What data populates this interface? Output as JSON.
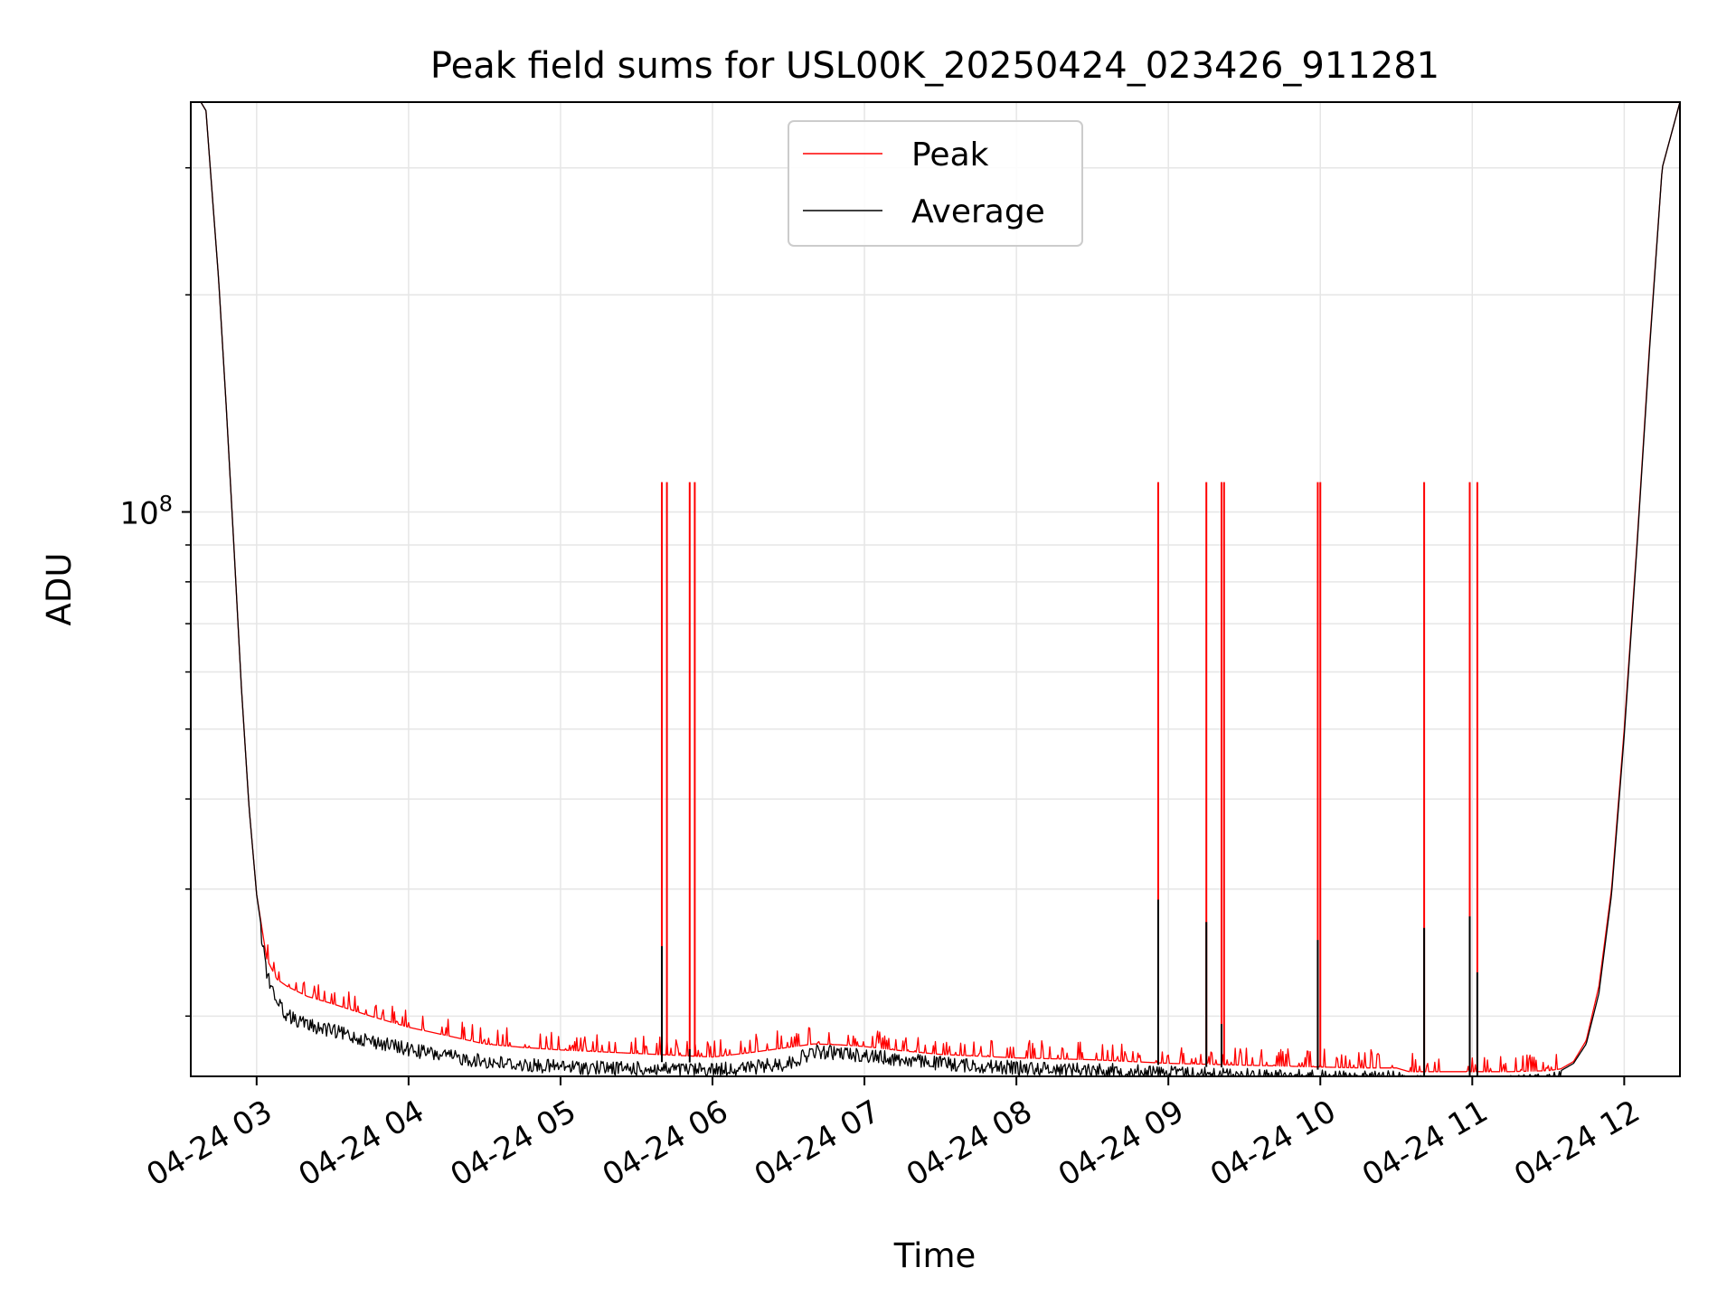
{
  "chart_data": {
    "type": "line",
    "title": "Peak field sums for USL00K_20250424_023426_911281",
    "xlabel": "Time",
    "ylabel": "ADU",
    "y_scale": "log",
    "grid": true,
    "legend_placement": "upper-center",
    "x_ticks": [
      "04-24 03",
      "04-24 04",
      "04-24 05",
      "04-24 06",
      "04-24 07",
      "04-24 08",
      "04-24 09",
      "04-24 10",
      "04-24 11",
      "04-24 12"
    ],
    "y_tick_major": "10^8",
    "xlim": [
      "2025-04-24 02:34",
      "2025-04-24 12:22"
    ],
    "ylim": [
      16500000,
      370000000
    ],
    "series": [
      {
        "name": "Peak",
        "color": "#ff0000",
        "x": [
          "02:34",
          "02:38",
          "02:40",
          "02:42",
          "02:45",
          "02:48",
          "02:51",
          "02:54",
          "02:57",
          "03:00",
          "03:04",
          "03:08",
          "03:12",
          "03:20",
          "03:30",
          "03:45",
          "04:00",
          "04:15",
          "04:30",
          "04:45",
          "05:00",
          "05:15",
          "05:30",
          "05:45",
          "06:00",
          "06:15",
          "06:30",
          "06:40",
          "06:50",
          "07:00",
          "07:15",
          "07:30",
          "07:45",
          "08:00",
          "08:15",
          "08:30",
          "08:45",
          "09:00",
          "09:15",
          "09:30",
          "09:45",
          "10:00",
          "10:15",
          "10:30",
          "10:35",
          "10:45",
          "11:00",
          "11:15",
          "11:30",
          "11:35",
          "11:40",
          "11:45",
          "11:50",
          "11:55",
          "12:00",
          "12:05",
          "12:10",
          "12:15",
          "12:22"
        ],
        "y": [
          370000000,
          370000000,
          360000000,
          290000000,
          210000000,
          140000000,
          90000000,
          57000000,
          39000000,
          29500000,
          24000000,
          22500000,
          22000000,
          21300000,
          20800000,
          20000000,
          19300000,
          18800000,
          18300000,
          18100000,
          17950000,
          17850000,
          17750000,
          17650000,
          17550000,
          17800000,
          18100000,
          18300000,
          18250000,
          18150000,
          17900000,
          17700000,
          17600000,
          17500000,
          17450000,
          17400000,
          17300000,
          17200000,
          17150000,
          17100000,
          17050000,
          17000000,
          16950000,
          16950000,
          16750000,
          16750000,
          16750000,
          16750000,
          16800000,
          16900000,
          17300000,
          18500000,
          22000000,
          30000000,
          50000000,
          90000000,
          170000000,
          300000000,
          370000000
        ],
        "spikes": [
          {
            "x": "05:40",
            "y": 110000000
          },
          {
            "x": "05:42",
            "y": 110000000
          },
          {
            "x": "05:51",
            "y": 110000000
          },
          {
            "x": "05:53",
            "y": 110000000
          },
          {
            "x": "08:56",
            "y": 110000000
          },
          {
            "x": "09:15",
            "y": 110000000
          },
          {
            "x": "09:21",
            "y": 110000000
          },
          {
            "x": "09:22",
            "y": 110000000
          },
          {
            "x": "09:59",
            "y": 110000000
          },
          {
            "x": "10:00",
            "y": 110000000
          },
          {
            "x": "10:41",
            "y": 110000000
          },
          {
            "x": "10:59",
            "y": 110000000
          },
          {
            "x": "11:02",
            "y": 110000000
          }
        ]
      },
      {
        "name": "Average",
        "color": "#000000",
        "x": [
          "02:34",
          "02:38",
          "02:40",
          "02:42",
          "02:45",
          "02:48",
          "02:51",
          "02:54",
          "02:57",
          "03:00",
          "03:04",
          "03:08",
          "03:12",
          "03:20",
          "03:30",
          "03:45",
          "04:00",
          "04:15",
          "04:30",
          "04:45",
          "05:00",
          "05:15",
          "05:30",
          "05:45",
          "06:00",
          "06:15",
          "06:30",
          "06:40",
          "06:50",
          "07:00",
          "07:15",
          "07:30",
          "07:45",
          "08:00",
          "08:15",
          "08:30",
          "08:45",
          "09:00",
          "09:15",
          "09:30",
          "09:45",
          "10:00",
          "10:15",
          "10:30",
          "10:35",
          "10:45",
          "11:00",
          "11:15",
          "11:30",
          "11:35",
          "11:40",
          "11:45",
          "11:50",
          "11:55",
          "12:00",
          "12:05",
          "12:10",
          "12:15",
          "12:22"
        ],
        "y": [
          370000000,
          370000000,
          360000000,
          290000000,
          210000000,
          140000000,
          90000000,
          57000000,
          39000000,
          29500000,
          23500000,
          21500000,
          20500000,
          19900000,
          19500000,
          18900000,
          18400000,
          18000000,
          17700000,
          17500000,
          17400000,
          17350000,
          17300000,
          17250000,
          17250000,
          17350000,
          17600000,
          18250000,
          18200000,
          18050000,
          17800000,
          17600000,
          17450000,
          17350000,
          17300000,
          17250000,
          17150000,
          17100000,
          17000000,
          16950000,
          16900000,
          16850000,
          16800000,
          16800000,
          16550000,
          16550000,
          16550000,
          16550000,
          16650000,
          16800000,
          17200000,
          18300000,
          21500000,
          29500000,
          49000000,
          89000000,
          168000000,
          300000000,
          370000000
        ],
        "spikes": [
          {
            "x": "05:40",
            "y": 25000000
          },
          {
            "x": "05:51",
            "y": 18000000
          },
          {
            "x": "08:56",
            "y": 29000000
          },
          {
            "x": "09:15",
            "y": 27000000
          },
          {
            "x": "09:21",
            "y": 19500000
          },
          {
            "x": "09:59",
            "y": 25500000
          },
          {
            "x": "10:41",
            "y": 26500000
          },
          {
            "x": "10:59",
            "y": 27500000
          },
          {
            "x": "11:02",
            "y": 23000000
          }
        ]
      }
    ]
  }
}
